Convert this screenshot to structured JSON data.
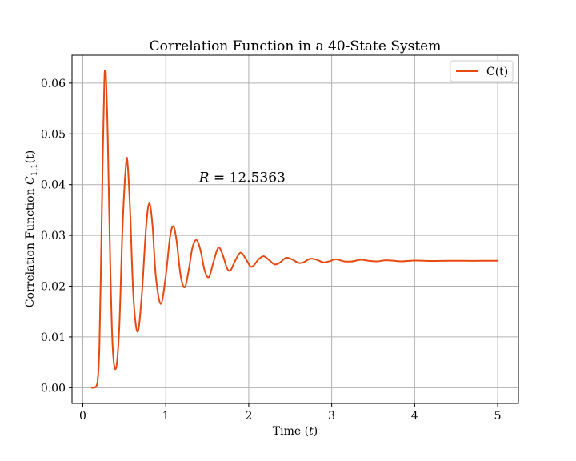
{
  "chart_data": {
    "type": "line",
    "title": "Correlation Function in a 40-State System",
    "xlabel": "Time",
    "xlabel_var": "t",
    "ylabel": "Correlation Function",
    "ylabel_var": "C",
    "ylabel_sub": "1,1",
    "ylabel_arg": "(t)",
    "xlim": [
      -0.13,
      5.25
    ],
    "ylim": [
      -0.0031,
      0.0655
    ],
    "x_ticks": [
      0,
      1,
      2,
      3,
      4,
      5
    ],
    "x_tick_labels": [
      "0",
      "1",
      "2",
      "3",
      "4",
      "5"
    ],
    "y_ticks": [
      0.0,
      0.01,
      0.02,
      0.03,
      0.04,
      0.05,
      0.06
    ],
    "y_tick_labels": [
      "0.00",
      "0.01",
      "0.02",
      "0.03",
      "0.04",
      "0.05",
      "0.06"
    ],
    "grid": true,
    "legend_position": "top-right",
    "annotation": {
      "symbol": "R",
      "text": " = 12.5363",
      "x": 1.4,
      "y": 0.0405
    },
    "series": [
      {
        "name": "C(t)",
        "color": "#e8490f",
        "points": [
          [
            0.1,
            0.0
          ],
          [
            0.15,
            0.0001
          ],
          [
            0.18,
            0.0015
          ],
          [
            0.2,
            0.008
          ],
          [
            0.22,
            0.025
          ],
          [
            0.24,
            0.045
          ],
          [
            0.26,
            0.0605
          ],
          [
            0.27,
            0.0622
          ],
          [
            0.28,
            0.061
          ],
          [
            0.3,
            0.05
          ],
          [
            0.33,
            0.025
          ],
          [
            0.36,
            0.008
          ],
          [
            0.4,
            0.0038
          ],
          [
            0.44,
            0.012
          ],
          [
            0.48,
            0.032
          ],
          [
            0.52,
            0.0438
          ],
          [
            0.54,
            0.0442
          ],
          [
            0.57,
            0.035
          ],
          [
            0.61,
            0.018
          ],
          [
            0.66,
            0.011
          ],
          [
            0.71,
            0.018
          ],
          [
            0.76,
            0.031
          ],
          [
            0.8,
            0.0363
          ],
          [
            0.84,
            0.032
          ],
          [
            0.88,
            0.022
          ],
          [
            0.94,
            0.0165
          ],
          [
            1.0,
            0.022
          ],
          [
            1.05,
            0.0295
          ],
          [
            1.09,
            0.0318
          ],
          [
            1.13,
            0.029
          ],
          [
            1.18,
            0.022
          ],
          [
            1.23,
            0.0198
          ],
          [
            1.28,
            0.0235
          ],
          [
            1.32,
            0.0275
          ],
          [
            1.37,
            0.0291
          ],
          [
            1.42,
            0.027
          ],
          [
            1.47,
            0.023
          ],
          [
            1.52,
            0.0218
          ],
          [
            1.57,
            0.0245
          ],
          [
            1.62,
            0.0272
          ],
          [
            1.65,
            0.0275
          ],
          [
            1.69,
            0.026
          ],
          [
            1.74,
            0.0235
          ],
          [
            1.78,
            0.0231
          ],
          [
            1.83,
            0.0248
          ],
          [
            1.9,
            0.0266
          ],
          [
            1.96,
            0.0255
          ],
          [
            2.02,
            0.0239
          ],
          [
            2.06,
            0.0241
          ],
          [
            2.12,
            0.0253
          ],
          [
            2.18,
            0.0259
          ],
          [
            2.25,
            0.0251
          ],
          [
            2.31,
            0.0243
          ],
          [
            2.37,
            0.0246
          ],
          [
            2.45,
            0.0256
          ],
          [
            2.52,
            0.0253
          ],
          [
            2.6,
            0.0246
          ],
          [
            2.66,
            0.0247
          ],
          [
            2.74,
            0.0254
          ],
          [
            2.82,
            0.0252
          ],
          [
            2.9,
            0.0247
          ],
          [
            2.97,
            0.0249
          ],
          [
            3.05,
            0.0253
          ],
          [
            3.15,
            0.0249
          ],
          [
            3.25,
            0.0249
          ],
          [
            3.35,
            0.0252
          ],
          [
            3.45,
            0.025
          ],
          [
            3.55,
            0.0249
          ],
          [
            3.65,
            0.0251
          ],
          [
            3.75,
            0.025
          ],
          [
            3.85,
            0.0249
          ],
          [
            4.0,
            0.02505
          ],
          [
            4.2,
            0.02498
          ],
          [
            4.4,
            0.02502
          ],
          [
            4.6,
            0.025
          ],
          [
            4.8,
            0.025
          ],
          [
            5.0,
            0.025
          ]
        ]
      }
    ]
  }
}
